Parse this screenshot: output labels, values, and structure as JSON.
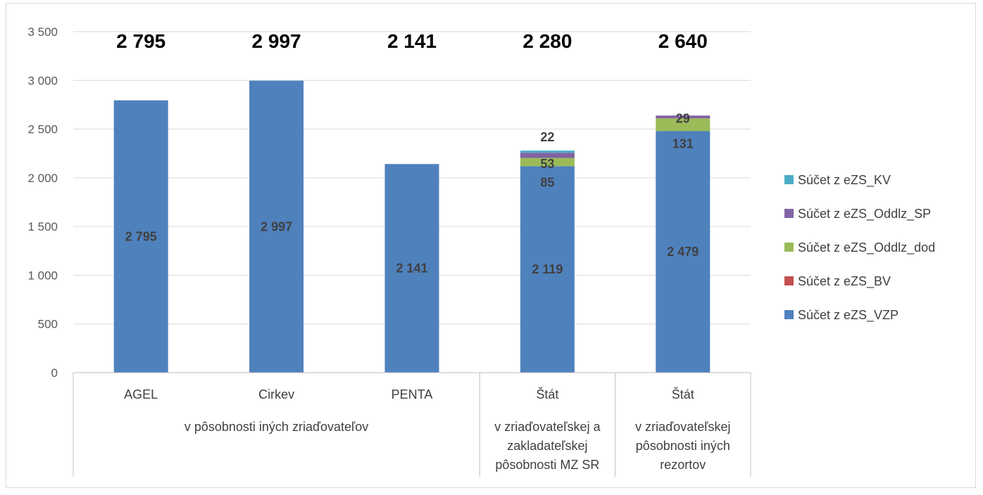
{
  "chart_data": {
    "type": "bar",
    "stacked": true,
    "ylim": [
      0,
      3500
    ],
    "yticks": [
      0,
      500,
      1000,
      1500,
      2000,
      2500,
      3000,
      3500
    ],
    "ytick_labels": [
      "0",
      "500",
      "1 000",
      "1 500",
      "2 000",
      "2 500",
      "3 000",
      "3 500"
    ],
    "grid": true,
    "legend_position": "right",
    "categories": [
      "AGEL",
      "Cirkev",
      "PENTA",
      "Štát",
      "Štát"
    ],
    "group_labels": [
      {
        "label": "v pôsobnosti iných zriaďovateľov",
        "from": 0,
        "to": 2
      },
      {
        "label": "v zriaďovateľskej a zakladateľskej pôsobnosti MZ SR",
        "from": 3,
        "to": 3
      },
      {
        "label": "v zriaďovateľskej pôsobnosti iných rezortov",
        "from": 4,
        "to": 4
      }
    ],
    "group_label_lines": [
      [
        "v pôsobnosti iných zriaďovateľov"
      ],
      [
        "v zriaďovateľskej a",
        "zakladateľskej",
        "pôsobnosti MZ SR"
      ],
      [
        "v zriaďovateľskej",
        "pôsobnosti iných",
        "rezortov"
      ]
    ],
    "totals": [
      2795,
      2997,
      2141,
      2280,
      2640
    ],
    "total_labels": [
      "2 795",
      "2 997",
      "2 141",
      "2 280",
      "2 640"
    ],
    "series": [
      {
        "name": "Súčet z eZS_VZP",
        "color": "#4f81bd",
        "values": [
          2795,
          2997,
          2141,
          2119,
          2479
        ],
        "labels": [
          "2 795",
          "2 997",
          "2 141",
          "2 119",
          "2 479"
        ]
      },
      {
        "name": "Súčet z eZS_BV",
        "color": "#c0504d",
        "values": [
          0,
          0,
          0,
          0,
          0
        ],
        "labels": [
          "",
          "",
          "",
          "",
          ""
        ]
      },
      {
        "name": "Súčet z eZS_Oddlz_dod",
        "color": "#9bbb59",
        "values": [
          0,
          0,
          0,
          85,
          131
        ],
        "labels": [
          "",
          "",
          "",
          "85",
          "131"
        ]
      },
      {
        "name": "Súčet z eZS_Oddlz_SP",
        "color": "#8064a2",
        "values": [
          0,
          0,
          0,
          53,
          29
        ],
        "labels": [
          "",
          "",
          "",
          "53",
          "29"
        ]
      },
      {
        "name": "Súčet z eZS_KV",
        "color": "#4bacc6",
        "values": [
          0,
          0,
          0,
          22,
          0
        ],
        "labels": [
          "",
          "",
          "",
          "22",
          ""
        ]
      }
    ],
    "legend_order": [
      "Súčet z eZS_KV",
      "Súčet z eZS_Oddlz_SP",
      "Súčet z eZS_Oddlz_dod",
      "Súčet z eZS_BV",
      "Súčet z eZS_VZP"
    ]
  }
}
